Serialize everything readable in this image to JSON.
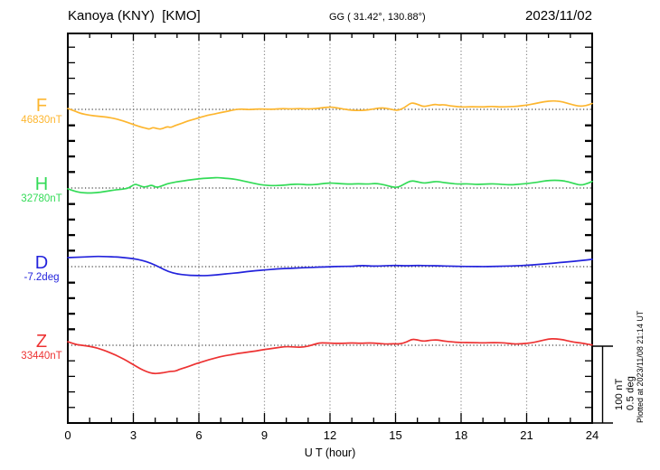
{
  "header": {
    "title": "Kanoya (KNY)  [KMO]",
    "coordinates": "GG ( 31.42°, 130.88°)",
    "date": "2023/11/02"
  },
  "chart_data": {
    "type": "line",
    "xlabel": "U T (hour)",
    "x_ticks": [
      "0",
      "3",
      "6",
      "9",
      "12",
      "15",
      "18",
      "21",
      "24"
    ],
    "x_range": [
      0,
      24
    ],
    "grid": "dotted vertical gridlines every 3 h; dotted horizontal baseline per component",
    "legend_position": "left margin, one label per trace",
    "scale_bar": {
      "nT_label": "100 nT",
      "deg_label": "0.5 deg",
      "nT": 100,
      "deg": 0.5
    },
    "plotted_note": "Plotted at 2023/11/08 21:14 UT",
    "series": [
      {
        "id": "F",
        "label": "F",
        "baseline_label": "46830nT",
        "unit": "nT",
        "color": "#FDB62F",
        "points": [
          [
            0,
            1
          ],
          [
            0.3,
            -2
          ],
          [
            0.6,
            -5.5
          ],
          [
            1,
            -7.5
          ],
          [
            1.4,
            -9
          ],
          [
            1.8,
            -10
          ],
          [
            2.1,
            -11.5
          ],
          [
            2.5,
            -14.5
          ],
          [
            2.9,
            -18.5
          ],
          [
            3.3,
            -22.5
          ],
          [
            3.6,
            -24.5
          ],
          [
            3.75,
            -25.5
          ],
          [
            3.9,
            -23
          ],
          [
            4.1,
            -25
          ],
          [
            4.3,
            -25.5
          ],
          [
            4.55,
            -22
          ],
          [
            4.7,
            -23.5
          ],
          [
            4.9,
            -21
          ],
          [
            5.1,
            -19
          ],
          [
            5.35,
            -16.5
          ],
          [
            5.6,
            -14
          ],
          [
            5.8,
            -12.5
          ],
          [
            6.1,
            -10
          ],
          [
            6.4,
            -7.5
          ],
          [
            6.7,
            -6
          ],
          [
            7,
            -4
          ],
          [
            7.4,
            -2
          ],
          [
            7.7,
            0
          ],
          [
            8,
            0.5
          ],
          [
            8.3,
            -0.5
          ],
          [
            8.6,
            0.5
          ],
          [
            9,
            0.5
          ],
          [
            9.4,
            0
          ],
          [
            9.8,
            1
          ],
          [
            10.2,
            0.5
          ],
          [
            10.6,
            1
          ],
          [
            11,
            0.5
          ],
          [
            11.4,
            1
          ],
          [
            11.8,
            2.5
          ],
          [
            12.1,
            3
          ],
          [
            12.4,
            1.5
          ],
          [
            12.7,
            0
          ],
          [
            13,
            -1
          ],
          [
            13.3,
            -1.5
          ],
          [
            13.6,
            -1
          ],
          [
            13.9,
            0
          ],
          [
            14.2,
            1.5
          ],
          [
            14.5,
            2
          ],
          [
            14.8,
            0
          ],
          [
            15.1,
            -1.5
          ],
          [
            15.4,
            2
          ],
          [
            15.7,
            8.5
          ],
          [
            15.9,
            7.5
          ],
          [
            16.1,
            5.5
          ],
          [
            16.3,
            3.5
          ],
          [
            16.55,
            5
          ],
          [
            16.8,
            6.5
          ],
          [
            17,
            5.5
          ],
          [
            17.2,
            6
          ],
          [
            17.5,
            4.5
          ],
          [
            17.8,
            3.5
          ],
          [
            18.1,
            3
          ],
          [
            18.5,
            3.5
          ],
          [
            19,
            3
          ],
          [
            19.4,
            4
          ],
          [
            19.8,
            3
          ],
          [
            20.2,
            3.5
          ],
          [
            20.6,
            4
          ],
          [
            21,
            5.5
          ],
          [
            21.4,
            7.5
          ],
          [
            21.8,
            10
          ],
          [
            22.2,
            11
          ],
          [
            22.5,
            10.5
          ],
          [
            22.8,
            8.5
          ],
          [
            23.1,
            6
          ],
          [
            23.4,
            4
          ],
          [
            23.7,
            4.5
          ],
          [
            24,
            7.5
          ]
        ]
      },
      {
        "id": "H",
        "label": "H",
        "baseline_label": "32780nT",
        "unit": "nT",
        "color": "#33DB57",
        "points": [
          [
            0,
            -1
          ],
          [
            0.3,
            -4
          ],
          [
            0.6,
            -6
          ],
          [
            1,
            -6.5
          ],
          [
            1.3,
            -6
          ],
          [
            1.7,
            -4.5
          ],
          [
            2.1,
            -2.5
          ],
          [
            2.5,
            -1.5
          ],
          [
            2.8,
            0
          ],
          [
            3.05,
            5
          ],
          [
            3.2,
            4
          ],
          [
            3.45,
            1
          ],
          [
            3.65,
            2
          ],
          [
            3.85,
            4
          ],
          [
            4.05,
            0.5
          ],
          [
            4.3,
            2.5
          ],
          [
            4.55,
            5.5
          ],
          [
            4.8,
            7
          ],
          [
            5.1,
            8.5
          ],
          [
            5.5,
            10
          ],
          [
            5.8,
            11
          ],
          [
            6.2,
            12.5
          ],
          [
            6.6,
            13
          ],
          [
            6.9,
            13.5
          ],
          [
            7.2,
            12.5
          ],
          [
            7.5,
            12
          ],
          [
            7.9,
            10
          ],
          [
            8.2,
            8
          ],
          [
            8.6,
            5.5
          ],
          [
            9,
            3.5
          ],
          [
            9.4,
            3
          ],
          [
            9.8,
            3.5
          ],
          [
            10.2,
            4.5
          ],
          [
            10.6,
            5
          ],
          [
            11,
            4
          ],
          [
            11.4,
            4.5
          ],
          [
            11.8,
            6
          ],
          [
            12.1,
            6.5
          ],
          [
            12.5,
            5.5
          ],
          [
            12.9,
            5
          ],
          [
            13.3,
            5.5
          ],
          [
            13.7,
            5
          ],
          [
            14.1,
            6
          ],
          [
            14.5,
            4
          ],
          [
            14.8,
            1.5
          ],
          [
            15.1,
            0.5
          ],
          [
            15.4,
            5
          ],
          [
            15.7,
            9.5
          ],
          [
            16,
            8
          ],
          [
            16.3,
            6
          ],
          [
            16.6,
            7.5
          ],
          [
            16.9,
            8.5
          ],
          [
            17.2,
            7
          ],
          [
            17.5,
            6
          ],
          [
            17.9,
            5
          ],
          [
            18.3,
            5.5
          ],
          [
            18.7,
            4.5
          ],
          [
            19.1,
            5
          ],
          [
            19.5,
            5.5
          ],
          [
            19.9,
            4.5
          ],
          [
            20.3,
            4
          ],
          [
            20.7,
            5
          ],
          [
            21.1,
            6
          ],
          [
            21.5,
            7.5
          ],
          [
            21.9,
            9.5
          ],
          [
            22.3,
            10
          ],
          [
            22.6,
            9.5
          ],
          [
            22.9,
            8
          ],
          [
            23.2,
            5.5
          ],
          [
            23.5,
            3.5
          ],
          [
            23.8,
            6
          ],
          [
            24,
            8.5
          ]
        ]
      },
      {
        "id": "D",
        "label": "D",
        "baseline_label": "-7.2deg",
        "unit": "deg",
        "color": "#2323DC",
        "points": [
          [
            0,
            0.058
          ],
          [
            0.5,
            0.061
          ],
          [
            1,
            0.064
          ],
          [
            1.4,
            0.066
          ],
          [
            1.8,
            0.064
          ],
          [
            2.2,
            0.062
          ],
          [
            2.6,
            0.058
          ],
          [
            3,
            0.051
          ],
          [
            3.4,
            0.04
          ],
          [
            3.8,
            0.022
          ],
          [
            4.2,
            -0.004
          ],
          [
            4.6,
            -0.032
          ],
          [
            5,
            -0.047
          ],
          [
            5.4,
            -0.054
          ],
          [
            5.8,
            -0.057
          ],
          [
            6.2,
            -0.058
          ],
          [
            6.6,
            -0.055
          ],
          [
            7,
            -0.05
          ],
          [
            7.4,
            -0.045
          ],
          [
            7.8,
            -0.039
          ],
          [
            8.2,
            -0.032
          ],
          [
            8.6,
            -0.026
          ],
          [
            9,
            -0.021
          ],
          [
            9.4,
            -0.017
          ],
          [
            9.8,
            -0.013
          ],
          [
            10.2,
            -0.011
          ],
          [
            10.6,
            -0.008
          ],
          [
            11,
            -0.006
          ],
          [
            11.5,
            -0.003
          ],
          [
            12,
            -0.001
          ],
          [
            12.5,
            0.002
          ],
          [
            13,
            0.002
          ],
          [
            13.5,
            0.008
          ],
          [
            14,
            0.003
          ],
          [
            14.5,
            0.006
          ],
          [
            15,
            0.008
          ],
          [
            15.5,
            0.005
          ],
          [
            16,
            0.008
          ],
          [
            16.5,
            0.006
          ],
          [
            17,
            0.006
          ],
          [
            17.5,
            0.003
          ],
          [
            18,
            0.002
          ],
          [
            18.5,
            0.001
          ],
          [
            19,
            0
          ],
          [
            19.5,
            0.001
          ],
          [
            20,
            0.003
          ],
          [
            20.5,
            0.006
          ],
          [
            21,
            0.009
          ],
          [
            21.5,
            0.014
          ],
          [
            22,
            0.02
          ],
          [
            22.5,
            0.026
          ],
          [
            23,
            0.032
          ],
          [
            23.5,
            0.039
          ],
          [
            24,
            0.047
          ]
        ]
      },
      {
        "id": "Z",
        "label": "Z",
        "baseline_label": "33440nT",
        "unit": "nT",
        "color": "#ED3232",
        "points": [
          [
            0,
            4.5
          ],
          [
            0.3,
            1.5
          ],
          [
            0.6,
            0
          ],
          [
            0.9,
            -1
          ],
          [
            1.2,
            -2.5
          ],
          [
            1.5,
            -5
          ],
          [
            1.8,
            -8
          ],
          [
            2.1,
            -11.5
          ],
          [
            2.4,
            -15.5
          ],
          [
            2.7,
            -20
          ],
          [
            3,
            -25
          ],
          [
            3.3,
            -30
          ],
          [
            3.6,
            -34
          ],
          [
            3.9,
            -36.5
          ],
          [
            4.2,
            -36
          ],
          [
            4.5,
            -34.5
          ],
          [
            4.7,
            -33.5
          ],
          [
            4.9,
            -33.5
          ],
          [
            5.1,
            -31
          ],
          [
            5.4,
            -28.5
          ],
          [
            5.7,
            -25.5
          ],
          [
            6,
            -22.5
          ],
          [
            6.3,
            -20
          ],
          [
            6.6,
            -17.5
          ],
          [
            7,
            -14.5
          ],
          [
            7.4,
            -12.5
          ],
          [
            7.8,
            -10.5
          ],
          [
            8.2,
            -9
          ],
          [
            8.6,
            -7.5
          ],
          [
            9,
            -5.5
          ],
          [
            9.5,
            -3.5
          ],
          [
            10,
            -1.5
          ],
          [
            10.4,
            -2.5
          ],
          [
            10.8,
            -2.5
          ],
          [
            11.2,
            0.5
          ],
          [
            11.5,
            3
          ],
          [
            11.8,
            3
          ],
          [
            12.2,
            2.5
          ],
          [
            12.6,
            2.5
          ],
          [
            13,
            3
          ],
          [
            13.4,
            2.5
          ],
          [
            13.8,
            3
          ],
          [
            14.2,
            2.5
          ],
          [
            14.6,
            1.5
          ],
          [
            14.9,
            2
          ],
          [
            15.2,
            1.5
          ],
          [
            15.5,
            4
          ],
          [
            15.75,
            8
          ],
          [
            16,
            7
          ],
          [
            16.3,
            5
          ],
          [
            16.6,
            6.5
          ],
          [
            16.9,
            7
          ],
          [
            17.2,
            5.5
          ],
          [
            17.5,
            4.5
          ],
          [
            18,
            3.5
          ],
          [
            18.5,
            3.5
          ],
          [
            19,
            3
          ],
          [
            19.5,
            3.5
          ],
          [
            20,
            3
          ],
          [
            20.4,
            1.5
          ],
          [
            20.8,
            2
          ],
          [
            21.2,
            3
          ],
          [
            21.6,
            5.5
          ],
          [
            22,
            8
          ],
          [
            22.3,
            8.5
          ],
          [
            22.7,
            7
          ],
          [
            23,
            5
          ],
          [
            23.3,
            3.5
          ],
          [
            23.6,
            2.5
          ],
          [
            24,
            0.5
          ]
        ]
      }
    ]
  }
}
